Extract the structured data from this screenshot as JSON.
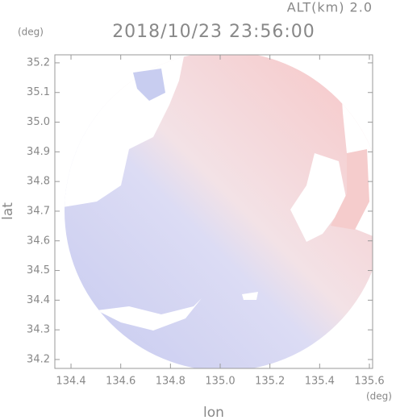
{
  "chart_data": {
    "type": "map",
    "title": "2018/10/23 23:56:00",
    "subtitle": "ALT(km) 2.0",
    "xlabel": "lon",
    "ylabel": "lat",
    "xunit": "(deg)",
    "yunit": "(deg)",
    "xlim": [
      134.335,
      135.613
    ],
    "ylim": [
      34.17,
      35.227
    ],
    "xticks": [
      134.4,
      134.6,
      134.8,
      {
        "value": 135,
        "label": "135.0"
      },
      135.2,
      135.4,
      135.6
    ],
    "yticks": [
      34.2,
      34.3,
      34.4,
      34.5,
      34.6,
      34.7,
      34.8,
      34.9,
      {
        "value": 35,
        "label": "35.0"
      },
      35.1,
      35.2
    ]
  }
}
